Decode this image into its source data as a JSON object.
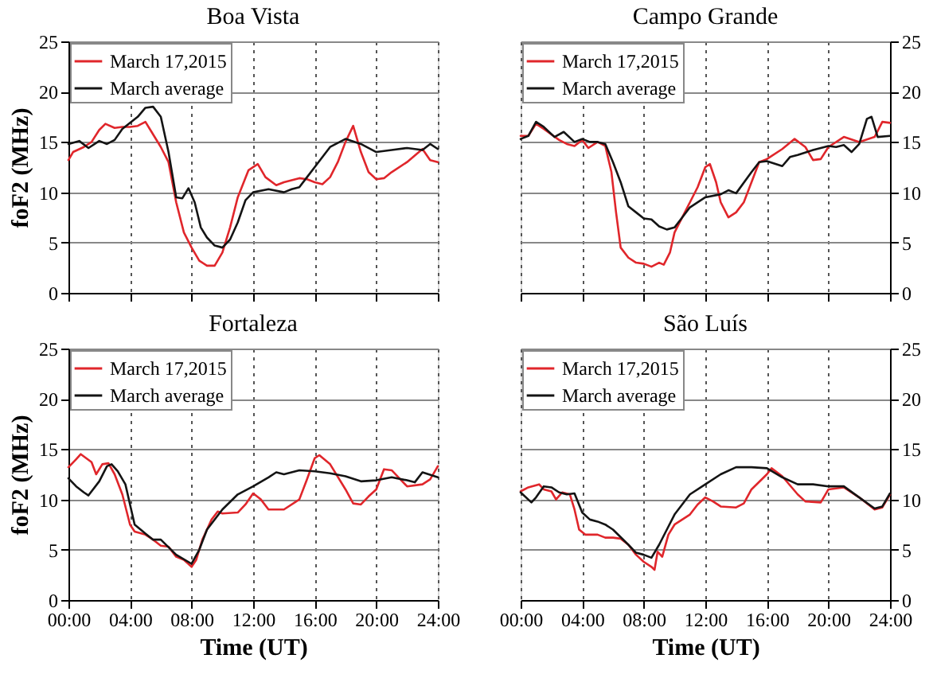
{
  "chart_data": [
    {
      "type": "line",
      "title": "Boa Vista",
      "ylabel": "foF2 (MHz)",
      "xlim": [
        0,
        24
      ],
      "ylim": [
        0,
        25
      ],
      "yticks": [
        0,
        5,
        10,
        15,
        20,
        25
      ],
      "xticks": [
        {
          "value": 0,
          "label": null
        },
        {
          "value": 4,
          "label": null
        },
        {
          "value": 8,
          "label": null
        },
        {
          "value": 12,
          "label": null
        },
        {
          "value": 16,
          "label": null
        },
        {
          "value": 20,
          "label": null
        },
        {
          "value": 24,
          "label": null
        }
      ],
      "tick_labels": "y",
      "grid": true,
      "legend": "top left",
      "line_style": "solid",
      "marker": "none",
      "series": [
        {
          "name": "March 17,2015",
          "color": "#e0262b",
          "x": [
            0,
            0.3,
            1,
            1.5,
            2,
            2.4,
            3,
            3.5,
            4,
            4.5,
            5,
            5.4,
            6,
            6.5,
            7,
            7.5,
            8,
            8.5,
            9,
            9.5,
            10,
            10.5,
            11,
            11.7,
            12.3,
            12.8,
            13.5,
            14,
            15,
            15.5,
            16,
            16.5,
            17,
            17.5,
            18,
            18.5,
            19,
            19.5,
            20,
            20.5,
            21,
            22,
            23,
            23.5,
            24
          ],
          "values": [
            13.2,
            14.0,
            14.5,
            15,
            16.2,
            16.8,
            16.4,
            16.5,
            16.5,
            16.6,
            17.0,
            16.0,
            14.5,
            13,
            9,
            6,
            4.5,
            3.2,
            2.7,
            2.7,
            4,
            6.5,
            9.5,
            12.2,
            12.8,
            11.5,
            10.7,
            11,
            11.4,
            11.3,
            11,
            10.8,
            11.5,
            13,
            15,
            16.6,
            14,
            12,
            11.3,
            11.4,
            12,
            13,
            14.3,
            13.2,
            13.0
          ]
        },
        {
          "name": "March average",
          "color": "#141414",
          "x": [
            0,
            0.7,
            1.3,
            2,
            2.5,
            3,
            3.5,
            4.5,
            5,
            5.5,
            6,
            6.5,
            7,
            7.4,
            7.8,
            8.2,
            8.6,
            9,
            9.5,
            10,
            10.5,
            11,
            11.5,
            12,
            13,
            14,
            14.5,
            15,
            15.5,
            16,
            17,
            18,
            19,
            20,
            21,
            22,
            23,
            23.5,
            24
          ],
          "values": [
            14.8,
            15.1,
            14.4,
            15.1,
            14.8,
            15.2,
            16.3,
            17.5,
            18.4,
            18.5,
            17.5,
            14,
            9.5,
            9.4,
            10.4,
            9,
            6.5,
            5.5,
            4.7,
            4.5,
            5.3,
            7,
            9.2,
            10,
            10.3,
            10.0,
            10.3,
            10.5,
            11.5,
            12.5,
            14.5,
            15.3,
            14.8,
            14,
            14.2,
            14.4,
            14.2,
            14.8,
            14.3
          ]
        }
      ]
    },
    {
      "type": "line",
      "title": "Campo Grande",
      "xlim": [
        0,
        24
      ],
      "ylim": [
        0,
        25
      ],
      "yticks": [
        0,
        5,
        10,
        15,
        20,
        25
      ],
      "xticks": [
        {
          "value": 0,
          "label": null
        },
        {
          "value": 4,
          "label": null
        },
        {
          "value": 8,
          "label": null
        },
        {
          "value": 12,
          "label": null
        },
        {
          "value": 16,
          "label": null
        },
        {
          "value": 20,
          "label": null
        },
        {
          "value": 24,
          "label": null
        }
      ],
      "tick_labels": "y",
      "grid": true,
      "legend": "top left",
      "line_style": "solid",
      "marker": "none",
      "series": [
        {
          "name": "March 17,2015",
          "color": "#e0262b",
          "x": [
            0,
            0.5,
            1,
            1.5,
            2.5,
            3,
            3.5,
            4,
            4.4,
            5,
            5.5,
            5.9,
            6.2,
            6.5,
            7,
            7.5,
            8,
            8.5,
            9,
            9.3,
            9.7,
            10,
            10.5,
            11,
            11.5,
            12,
            12.3,
            12.7,
            13,
            13.5,
            14,
            14.5,
            15,
            15.5,
            16,
            17,
            17.8,
            18.5,
            19,
            19.5,
            20,
            21,
            22,
            23,
            23.5,
            24
          ],
          "values": [
            15.6,
            15.6,
            16.8,
            16.3,
            15.2,
            14.8,
            14.6,
            15.2,
            14.4,
            15,
            14.6,
            12,
            8,
            4.5,
            3.5,
            3.0,
            2.9,
            2.6,
            3.0,
            2.8,
            4,
            6,
            7.5,
            9,
            10.5,
            12.5,
            12.8,
            11,
            9,
            7.5,
            8,
            9,
            11,
            13,
            13.3,
            14.3,
            15.3,
            14.5,
            13.2,
            13.3,
            14.5,
            15.5,
            15,
            15.5,
            17,
            16.9
          ]
        },
        {
          "name": "March average",
          "color": "#141414",
          "x": [
            0,
            0.5,
            1,
            1.5,
            2.2,
            2.8,
            3.5,
            4,
            4.5,
            5,
            5.5,
            6,
            6.5,
            7,
            7.5,
            8,
            8.5,
            9,
            9.5,
            10,
            10.5,
            11,
            12,
            13,
            13.5,
            14,
            15,
            15.5,
            16,
            17,
            17.5,
            18,
            19,
            20,
            20.5,
            21,
            21.5,
            22,
            22.5,
            22.8,
            23.2,
            24
          ],
          "values": [
            15.3,
            15.6,
            17,
            16.5,
            15.5,
            16,
            15,
            15.3,
            15,
            15,
            14.8,
            13,
            11,
            8.6,
            8,
            7.4,
            7.3,
            6.6,
            6.3,
            6.5,
            7.5,
            8.5,
            9.5,
            9.8,
            10.2,
            9.9,
            12,
            13,
            13.1,
            12.6,
            13.5,
            13.7,
            14.2,
            14.6,
            14.5,
            14.7,
            14,
            14.8,
            17.3,
            17.5,
            15.5,
            15.6
          ]
        }
      ]
    },
    {
      "type": "line",
      "title": "Fortaleza",
      "ylabel": "foF2 (MHz)",
      "xlabel": "Time (UT)",
      "xlim": [
        0,
        24
      ],
      "ylim": [
        0,
        25
      ],
      "yticks": [
        0,
        5,
        10,
        15,
        20,
        25
      ],
      "xticks": [
        {
          "value": 0,
          "label": "00:00"
        },
        {
          "value": 4,
          "label": "04:00"
        },
        {
          "value": 8,
          "label": "08:00"
        },
        {
          "value": 12,
          "label": "12:00"
        },
        {
          "value": 16,
          "label": "16:00"
        },
        {
          "value": 20,
          "label": "20:00"
        },
        {
          "value": 24,
          "label": "24:00"
        }
      ],
      "grid": true,
      "legend": "top left",
      "line_style": "solid",
      "marker": "none",
      "series": [
        {
          "name": "March 17,2015",
          "color": "#e0262b",
          "x": [
            0,
            0.5,
            0.8,
            1.5,
            1.8,
            2.2,
            2.6,
            3,
            3.5,
            4,
            4.3,
            5,
            5.5,
            6,
            6.5,
            7,
            7.5,
            8,
            8.3,
            8.7,
            9,
            9.3,
            9.7,
            10,
            11,
            11.5,
            12,
            12.5,
            13,
            14,
            15,
            15.5,
            16,
            16.3,
            17,
            18,
            18.5,
            19,
            19.5,
            20,
            20.5,
            21,
            22,
            23,
            23.5,
            24
          ],
          "values": [
            13.2,
            14.0,
            14.5,
            13.7,
            12.5,
            13.5,
            13.6,
            12.5,
            10.5,
            7.5,
            6.8,
            6.5,
            6,
            5.4,
            5.3,
            4.3,
            4,
            3.3,
            4,
            6,
            7,
            8,
            8.8,
            8.6,
            8.7,
            9.5,
            10.6,
            10,
            9,
            9,
            10,
            12,
            14.1,
            14.4,
            13.5,
            11,
            9.6,
            9.5,
            10.3,
            11,
            13,
            12.9,
            11.3,
            11.5,
            12,
            13.3
          ]
        },
        {
          "name": "March average",
          "color": "#141414",
          "x": [
            0,
            0.5,
            1,
            1.3,
            2,
            2.5,
            2.8,
            3.2,
            3.7,
            4,
            4.3,
            5,
            5.5,
            6,
            7,
            8,
            8.5,
            9,
            10,
            11,
            12,
            13,
            13.5,
            14,
            15,
            16,
            17,
            18,
            19,
            20,
            21,
            22,
            22.5,
            23,
            24
          ],
          "values": [
            12.1,
            11.3,
            10.7,
            10.4,
            11.8,
            13.3,
            13.5,
            12.8,
            11.5,
            9.5,
            7.5,
            6.6,
            6,
            6,
            4.5,
            3.6,
            5,
            7,
            9,
            10.5,
            11.3,
            12.2,
            12.7,
            12.5,
            12.9,
            12.8,
            12.6,
            12.3,
            11.8,
            11.9,
            12.2,
            11.9,
            11.7,
            12.7,
            12.2
          ]
        }
      ]
    },
    {
      "type": "line",
      "title": "São Luís",
      "xlabel": "Time (UT)",
      "xlim": [
        0,
        24
      ],
      "ylim": [
        0,
        25
      ],
      "yticks": [
        0,
        5,
        10,
        15,
        20,
        25
      ],
      "xticks": [
        {
          "value": 0,
          "label": "00:00"
        },
        {
          "value": 4,
          "label": "04:00"
        },
        {
          "value": 8,
          "label": "08:00"
        },
        {
          "value": 12,
          "label": "12:00"
        },
        {
          "value": 16,
          "label": "16:00"
        },
        {
          "value": 20,
          "label": "20:00"
        },
        {
          "value": 24,
          "label": "24:00"
        }
      ],
      "grid": true,
      "legend": "top left",
      "line_style": "solid",
      "marker": "none",
      "series": [
        {
          "name": "March 17,2015",
          "color": "#e0262b",
          "x": [
            0,
            0.5,
            1.2,
            1.5,
            2,
            2.3,
            2.7,
            3.2,
            3.5,
            3.8,
            4.2,
            5,
            5.5,
            6,
            6.5,
            7,
            7.5,
            8,
            8.5,
            8.7,
            8.9,
            9.2,
            9.6,
            10,
            11,
            11.5,
            12,
            12.5,
            13,
            14,
            14.5,
            15,
            16,
            16.3,
            17,
            18,
            18.5,
            19.5,
            20,
            21,
            22,
            23,
            23.5,
            24
          ],
          "values": [
            10.8,
            11.2,
            11.5,
            11,
            10.8,
            10.0,
            10.7,
            10.5,
            9,
            7,
            6.5,
            6.5,
            6.2,
            6.2,
            6.1,
            5.5,
            4.5,
            3.8,
            3.3,
            3,
            4.8,
            4.3,
            6.5,
            7.5,
            8.5,
            9.5,
            10.2,
            9.8,
            9.3,
            9.2,
            9.6,
            11,
            12.5,
            13.1,
            12.3,
            10.5,
            9.8,
            9.7,
            11,
            11.2,
            10.2,
            9,
            9.2,
            10.5
          ]
        },
        {
          "name": "March average",
          "color": "#141414",
          "x": [
            0,
            0.7,
            1,
            1.5,
            2,
            2.5,
            3,
            3.5,
            4,
            4.5,
            5,
            5.5,
            6,
            7,
            7.5,
            8,
            8.5,
            9,
            9.5,
            10,
            11,
            12,
            13,
            14,
            15,
            16,
            17,
            18,
            19,
            20,
            21,
            22,
            23,
            23.5,
            24
          ],
          "values": [
            10.7,
            9.7,
            10.2,
            11.3,
            11.2,
            10.7,
            10.5,
            10.6,
            8.7,
            8,
            7.8,
            7.5,
            7,
            5.5,
            4.7,
            4.5,
            4.2,
            5.5,
            7,
            8.5,
            10.5,
            11.5,
            12.5,
            13.2,
            13.2,
            13.1,
            12.2,
            11.5,
            11.5,
            11.3,
            11.3,
            10.2,
            9.1,
            9.3,
            10.6
          ]
        }
      ]
    }
  ]
}
